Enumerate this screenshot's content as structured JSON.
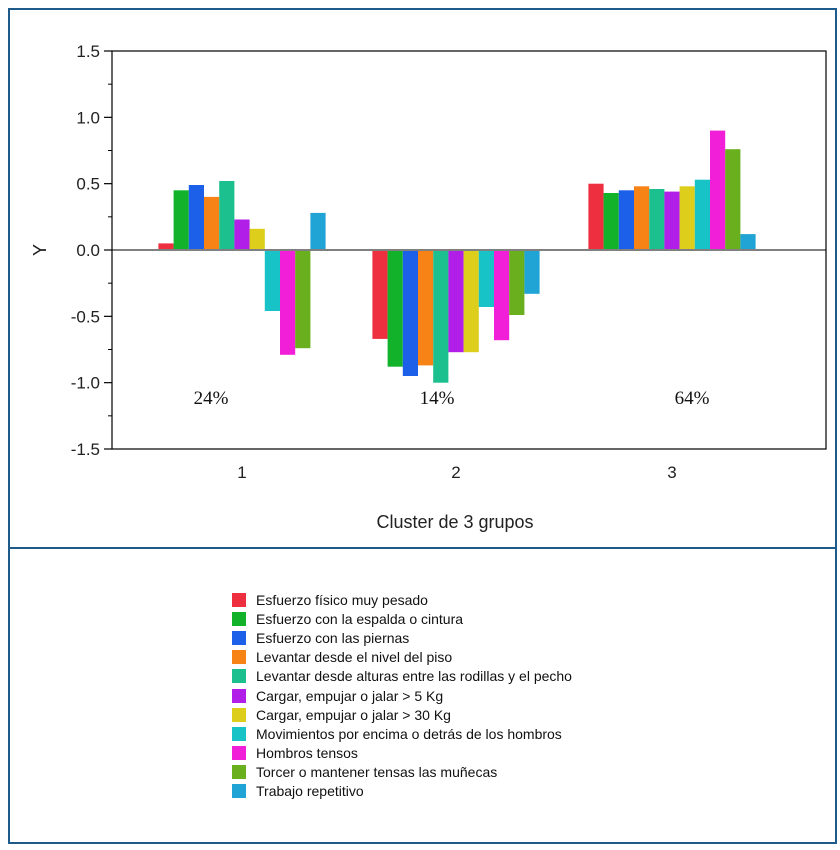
{
  "chart_data": {
    "type": "bar",
    "title": "",
    "xlabel": "Cluster de 3 grupos",
    "ylabel": "Y",
    "ylim": [
      -1.5,
      1.5
    ],
    "yticks": [
      "1.5",
      "1.0",
      "0.5",
      "0.0",
      "-0.5",
      "-1.0",
      "-1.5"
    ],
    "categories": [
      "1",
      "2",
      "3"
    ],
    "annotations": [
      "24%",
      "14%",
      "64%"
    ],
    "legend_position": "bottom",
    "series": [
      {
        "name": "Esfuerzo físico muy pesado",
        "color": "#ee2f40",
        "values": [
          0.05,
          -0.67,
          0.5
        ]
      },
      {
        "name": "Esfuerzo con la espalda o cintura",
        "color": "#12b32a",
        "values": [
          0.45,
          -0.88,
          0.43
        ]
      },
      {
        "name": "Esfuerzo con las piernas",
        "color": "#1c5fe8",
        "values": [
          0.49,
          -0.95,
          0.45
        ]
      },
      {
        "name": "Levantar desde el nivel del piso",
        "color": "#f78216",
        "values": [
          0.4,
          -0.87,
          0.48
        ]
      },
      {
        "name": "Levantar desde alturas entre las rodillas y el pecho",
        "color": "#1bc08e",
        "values": [
          0.52,
          -1.0,
          0.46
        ]
      },
      {
        "name": "Cargar, empujar o jalar > 5 Kg",
        "color": "#b11ee8",
        "values": [
          0.23,
          -0.77,
          0.44
        ]
      },
      {
        "name": "Cargar, empujar o jalar > 30 Kg",
        "color": "#dcce1b",
        "values": [
          0.16,
          -0.77,
          0.48
        ]
      },
      {
        "name": "Movimientos por encima o detrás de los hombros",
        "color": "#18c3c8",
        "values": [
          -0.46,
          -0.43,
          0.53
        ]
      },
      {
        "name": "Hombros tensos",
        "color": "#f21fd9",
        "values": [
          -0.79,
          -0.68,
          0.9
        ]
      },
      {
        "name": "Torcer o mantener tensas las muñecas",
        "color": "#6aaf1d",
        "values": [
          -0.74,
          -0.49,
          0.76
        ]
      },
      {
        "name": "Trabajo repetitivo",
        "color": "#20a4d6",
        "values": [
          0.28,
          -0.33,
          0.12
        ]
      }
    ]
  }
}
